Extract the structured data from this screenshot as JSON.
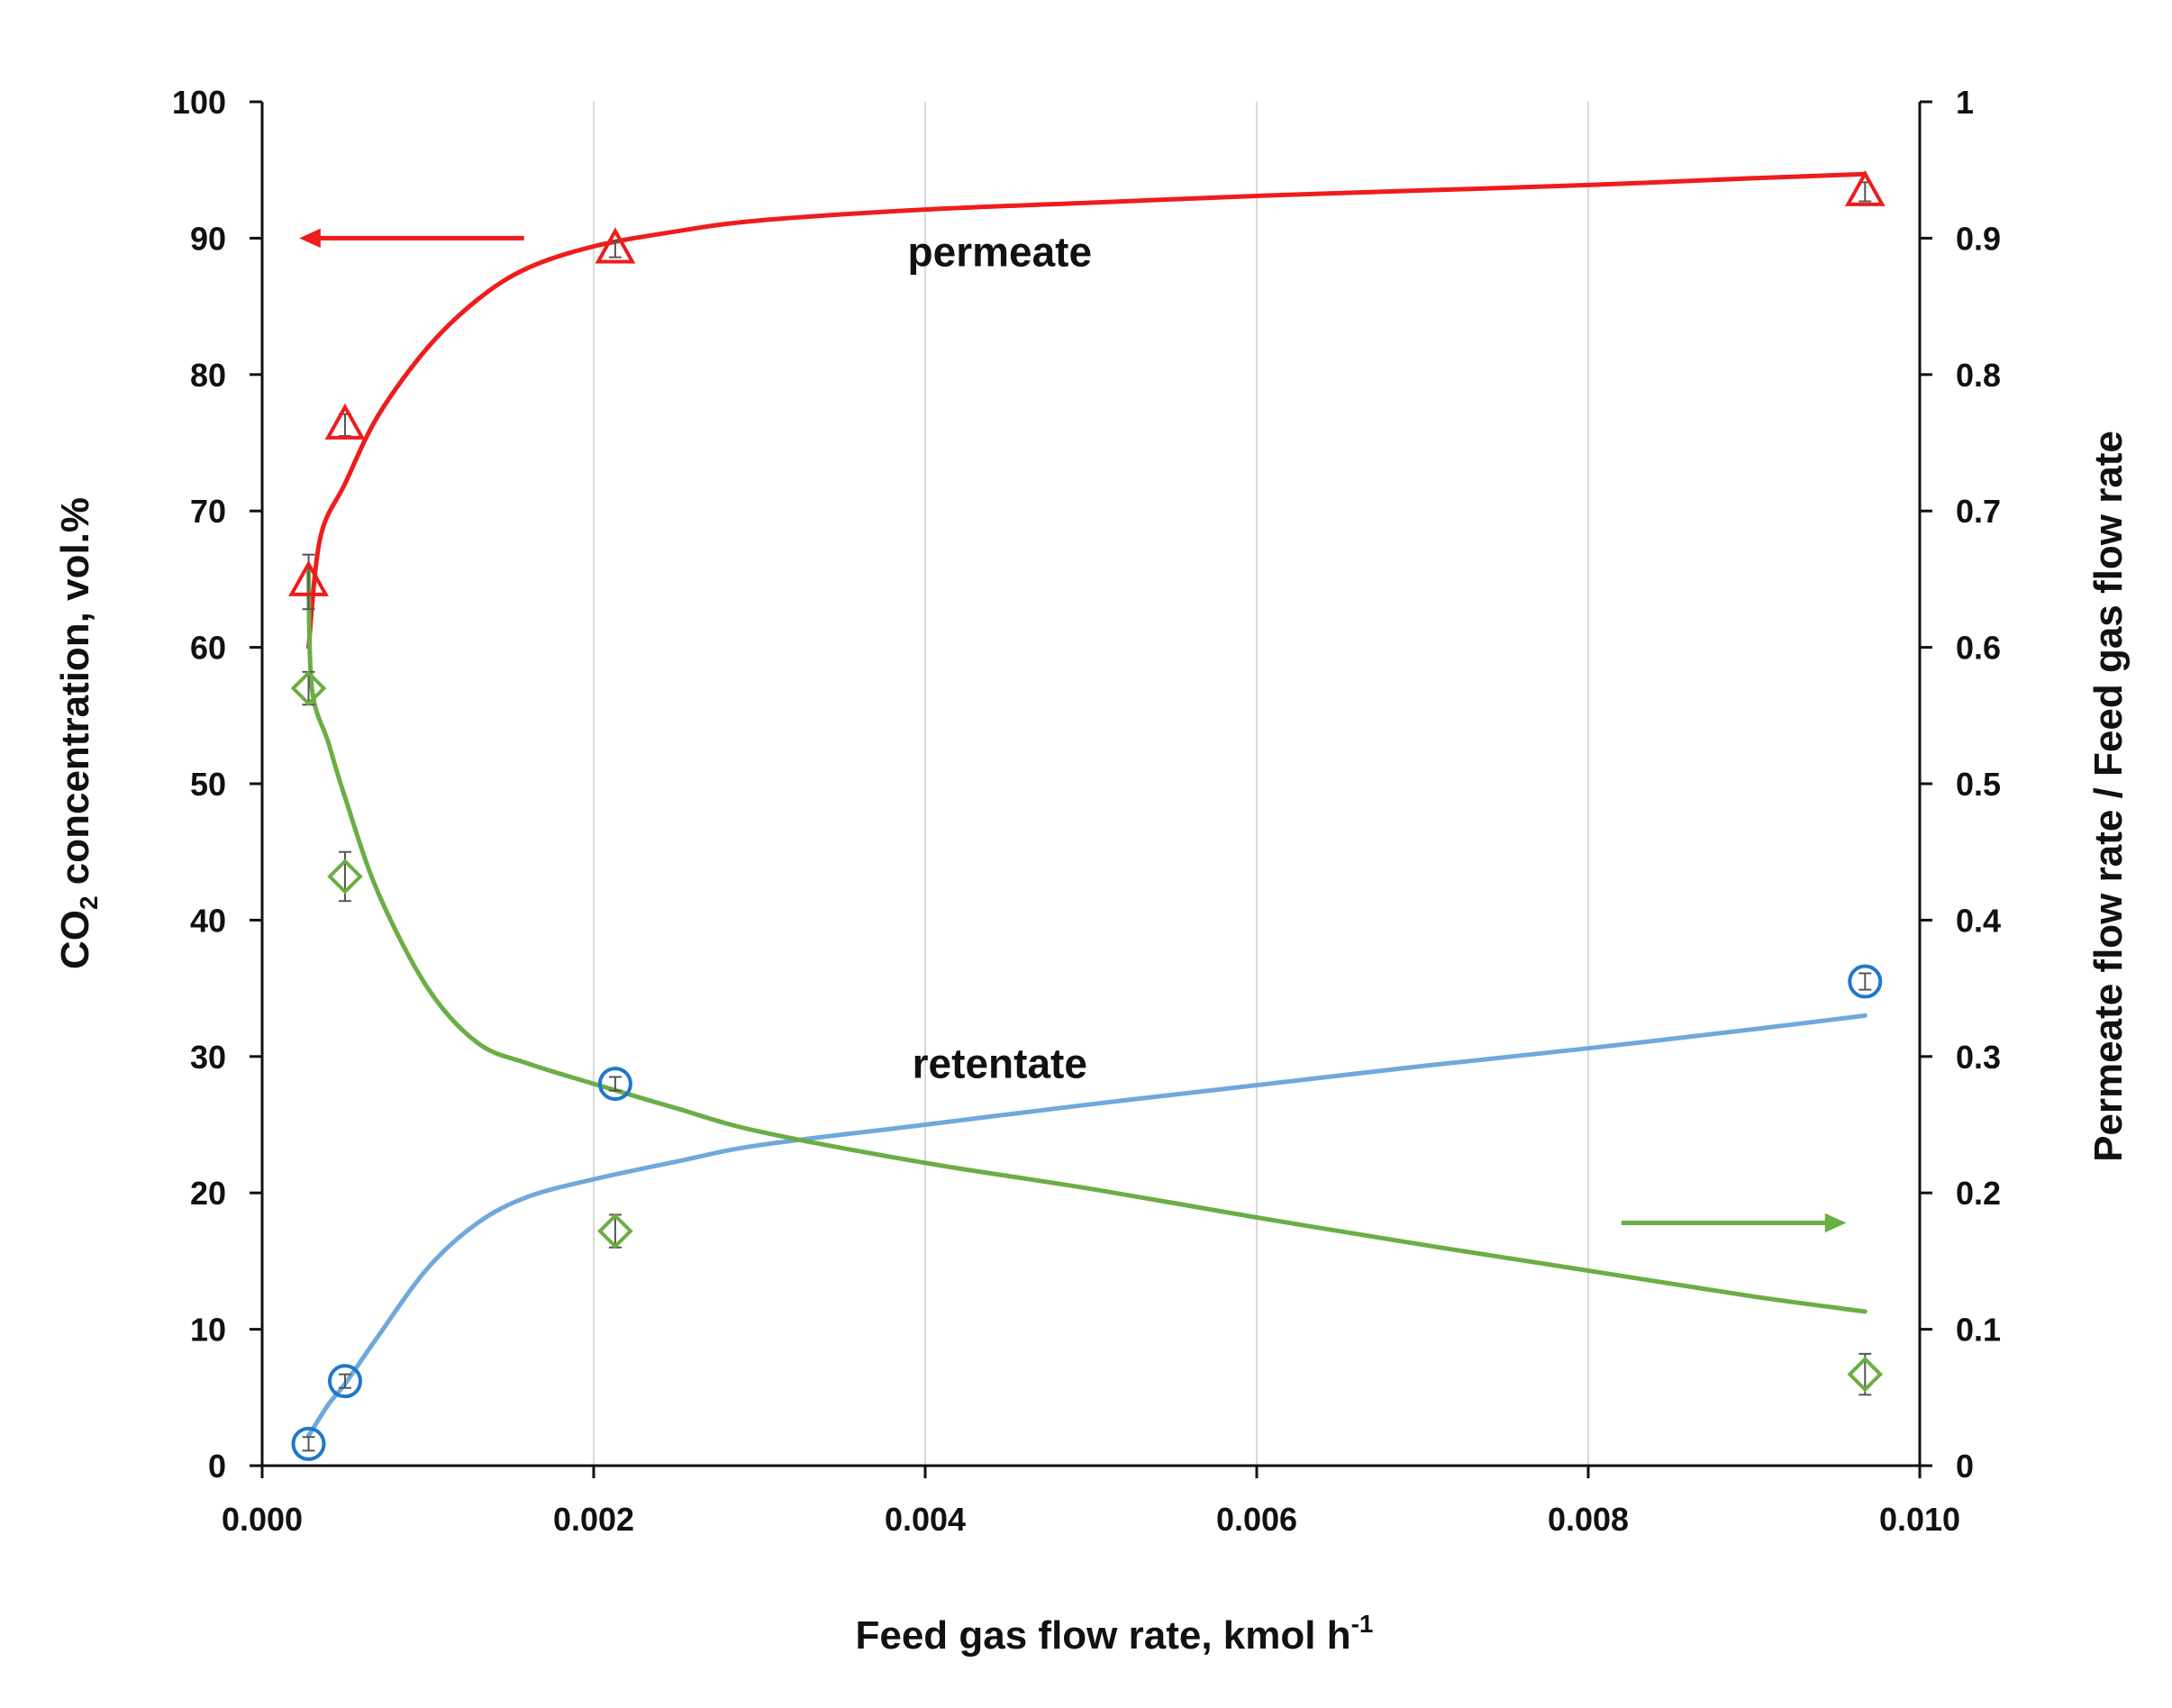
{
  "chart_data": {
    "type": "scatter",
    "x_title": {
      "main": "Feed gas flow rate, kmol h",
      "sup": "-1"
    },
    "y_left_title": {
      "pre": "CO",
      "sub": "2",
      "post": " concentration, vol.%"
    },
    "y_right_title": "Permeate flow rate / Feed gas flow rate",
    "xlim": [
      0,
      0.01
    ],
    "ylim_left": [
      0,
      100
    ],
    "ylim_right": [
      0,
      1
    ],
    "x_ticks": [
      {
        "value": 0,
        "label": "0.000"
      },
      {
        "value": 0.002,
        "label": "0.002"
      },
      {
        "value": 0.004,
        "label": "0.004"
      },
      {
        "value": 0.006,
        "label": "0.006"
      },
      {
        "value": 0.008,
        "label": "0.008"
      },
      {
        "value": 0.01,
        "label": "0.010"
      }
    ],
    "y_left_ticks": [
      {
        "value": 0,
        "label": "0"
      },
      {
        "value": 10,
        "label": "10"
      },
      {
        "value": 20,
        "label": "20"
      },
      {
        "value": 30,
        "label": "30"
      },
      {
        "value": 40,
        "label": "40"
      },
      {
        "value": 50,
        "label": "50"
      },
      {
        "value": 60,
        "label": "60"
      },
      {
        "value": 70,
        "label": "70"
      },
      {
        "value": 80,
        "label": "80"
      },
      {
        "value": 90,
        "label": "90"
      },
      {
        "value": 100,
        "label": "100"
      }
    ],
    "y_right_ticks": [
      {
        "value": 0,
        "label": "0"
      },
      {
        "value": 0.1,
        "label": "0.1"
      },
      {
        "value": 0.2,
        "label": "0.2"
      },
      {
        "value": 0.3,
        "label": "0.3"
      },
      {
        "value": 0.4,
        "label": "0.4"
      },
      {
        "value": 0.5,
        "label": "0.5"
      },
      {
        "value": 0.6,
        "label": "0.6"
      },
      {
        "value": 0.7,
        "label": "0.7"
      },
      {
        "value": 0.8,
        "label": "0.8"
      },
      {
        "value": 0.9,
        "label": "0.9"
      },
      {
        "value": 1,
        "label": "1"
      }
    ],
    "series": [
      {
        "name": "permeate",
        "axis": "left",
        "color": "#ee1c1c",
        "marker": "triangle",
        "points": [
          {
            "x": 0.00028,
            "y": 64.8,
            "err": 2.0
          },
          {
            "x": 0.0005,
            "y": 76.3,
            "err": 0.8
          },
          {
            "x": 0.00213,
            "y": 89.2,
            "err": 0.6
          },
          {
            "x": 0.00967,
            "y": 93.4,
            "err": 0.7
          }
        ],
        "curve": [
          [
            0.00028,
            60.0
          ],
          [
            0.00035,
            68.0
          ],
          [
            0.0005,
            72.0
          ],
          [
            0.0007,
            77.0
          ],
          [
            0.001,
            82.0
          ],
          [
            0.0013,
            85.5
          ],
          [
            0.0016,
            87.8
          ],
          [
            0.002,
            89.4
          ],
          [
            0.0025,
            90.5
          ],
          [
            0.003,
            91.3
          ],
          [
            0.004,
            92.1
          ],
          [
            0.005,
            92.6
          ],
          [
            0.006,
            93.1
          ],
          [
            0.007,
            93.5
          ],
          [
            0.008,
            93.9
          ],
          [
            0.009,
            94.4
          ],
          [
            0.00967,
            94.7
          ]
        ]
      },
      {
        "name": "retentate",
        "axis": "left",
        "color": "#1f78c8",
        "curve_color": "#6fa8dc",
        "marker": "circle",
        "points": [
          {
            "x": 0.00028,
            "y": 1.6,
            "err": 0.5
          },
          {
            "x": 0.0005,
            "y": 6.2,
            "err": 0.5
          },
          {
            "x": 0.00213,
            "y": 28.0,
            "err": 0.5
          },
          {
            "x": 0.00967,
            "y": 35.5,
            "err": 0.6
          }
        ],
        "curve": [
          [
            0.00028,
            2.2
          ],
          [
            0.0004,
            4.5
          ],
          [
            0.0005,
            6.0
          ],
          [
            0.0007,
            9.5
          ],
          [
            0.001,
            14.5
          ],
          [
            0.0013,
            17.8
          ],
          [
            0.0016,
            19.7
          ],
          [
            0.002,
            21.0
          ],
          [
            0.0025,
            22.3
          ],
          [
            0.003,
            23.5
          ],
          [
            0.004,
            25.0
          ],
          [
            0.005,
            26.5
          ],
          [
            0.006,
            27.9
          ],
          [
            0.007,
            29.3
          ],
          [
            0.008,
            30.6
          ],
          [
            0.009,
            32.0
          ],
          [
            0.00967,
            33.0
          ]
        ]
      },
      {
        "name": "Permeate flow rate / Feed gas flow rate",
        "axis": "right",
        "color": "#6aae45",
        "marker": "diamond",
        "points": [
          {
            "x": 0.00028,
            "y": 0.57,
            "err": 0.012
          },
          {
            "x": 0.0005,
            "y": 0.432,
            "err": 0.018
          },
          {
            "x": 0.00213,
            "y": 0.172,
            "err": 0.012
          },
          {
            "x": 0.00967,
            "y": 0.067,
            "err": 0.015
          }
        ],
        "curve": [
          [
            0.00028,
            0.655
          ],
          [
            0.0003,
            0.57
          ],
          [
            0.0004,
            0.53
          ],
          [
            0.0005,
            0.49
          ],
          [
            0.0007,
            0.42
          ],
          [
            0.001,
            0.35
          ],
          [
            0.0013,
            0.31
          ],
          [
            0.0016,
            0.295
          ],
          [
            0.002,
            0.28
          ],
          [
            0.0025,
            0.262
          ],
          [
            0.003,
            0.245
          ],
          [
            0.004,
            0.222
          ],
          [
            0.005,
            0.203
          ],
          [
            0.006,
            0.182
          ],
          [
            0.007,
            0.162
          ],
          [
            0.008,
            0.143
          ],
          [
            0.009,
            0.124
          ],
          [
            0.00967,
            0.113
          ]
        ]
      }
    ],
    "annotations": [
      {
        "text": "permeate",
        "x": 0.00445,
        "y": 89.0,
        "axis": "left"
      },
      {
        "text": "retentate",
        "x": 0.00445,
        "y": 29.5,
        "axis": "left"
      }
    ],
    "arrows": [
      {
        "series": "permeate",
        "direction": "left",
        "color": "#ee1c1c",
        "x_from": 0.00158,
        "x_to": 0.00023,
        "y": 90,
        "axis": "left"
      },
      {
        "series": "flow ratio",
        "direction": "right",
        "color": "#6aae45",
        "x_from": 0.0082,
        "x_to": 0.00955,
        "y": 0.178,
        "axis": "right"
      }
    ],
    "grid": "vertical",
    "legend": "none"
  }
}
